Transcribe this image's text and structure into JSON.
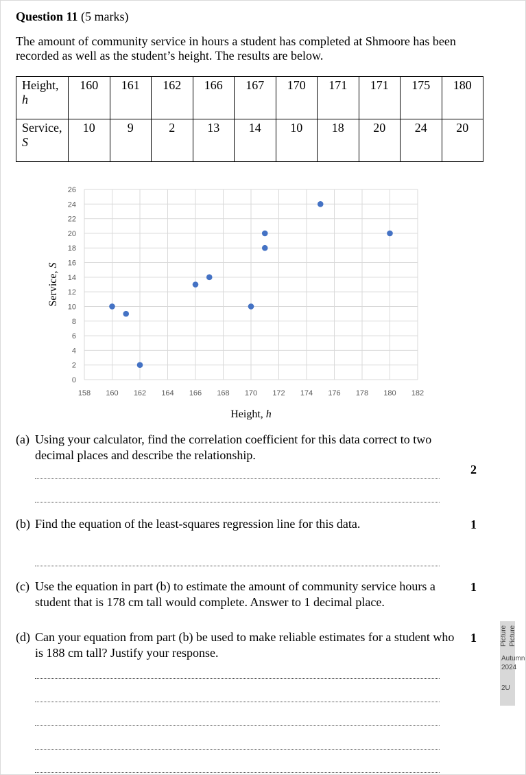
{
  "question": {
    "title": "Question 11",
    "marks": "(5 marks)",
    "intro": "The amount of community service in hours a student has completed at Shmoore has been recorded as well as the student’s height. The results are below."
  },
  "table": {
    "row1_label": "Height,",
    "row1_var": "h",
    "row2_label": "Service,",
    "row2_var": "S",
    "heights": [
      "160",
      "161",
      "162",
      "166",
      "167",
      "170",
      "171",
      "171",
      "175",
      "180"
    ],
    "service": [
      "10",
      "9",
      "2",
      "13",
      "14",
      "10",
      "18",
      "20",
      "24",
      "20"
    ]
  },
  "chart_data": {
    "type": "scatter",
    "xlabel": "Height, h",
    "ylabel": "Service, S",
    "xlim": [
      158,
      182
    ],
    "ylim": [
      0,
      26
    ],
    "x_ticks": [
      158,
      160,
      162,
      164,
      166,
      168,
      170,
      172,
      174,
      176,
      178,
      180,
      182
    ],
    "y_ticks": [
      0,
      2,
      4,
      6,
      8,
      10,
      12,
      14,
      16,
      18,
      20,
      22,
      24,
      26
    ],
    "grid": true,
    "points": [
      {
        "x": 160,
        "y": 10
      },
      {
        "x": 161,
        "y": 9
      },
      {
        "x": 162,
        "y": 2
      },
      {
        "x": 166,
        "y": 13
      },
      {
        "x": 167,
        "y": 14
      },
      {
        "x": 170,
        "y": 10
      },
      {
        "x": 171,
        "y": 18
      },
      {
        "x": 171,
        "y": 20
      },
      {
        "x": 175,
        "y": 24
      },
      {
        "x": 180,
        "y": 20
      }
    ],
    "marker_color": "#4472C4",
    "grid_color": "#d9d9d9"
  },
  "parts": {
    "a": {
      "label": "(a)",
      "text": "Using your calculator, find the correlation coefficient for this data correct to two decimal places and describe the relationship.",
      "marks": "2"
    },
    "b": {
      "label": "(b)",
      "text": "Find the equation of the least-squares regression line for this data.",
      "marks": "1"
    },
    "c": {
      "label": "(c)",
      "text": "Use the equation in part (b) to estimate the amount of community service hours a student that is 178 cm tall would complete. Answer to 1 decimal place.",
      "marks": "1"
    },
    "d": {
      "label": "(d)",
      "text": "Can your equation from part (b) be used to make reliable estimates for a student who is 188 cm tall? Justify your response.",
      "marks": "1"
    }
  },
  "sidebar": {
    "rot1": "Picture",
    "rot2": "Picture",
    "line1": "Autumn",
    "line2": "2024",
    "line3": "2U"
  }
}
